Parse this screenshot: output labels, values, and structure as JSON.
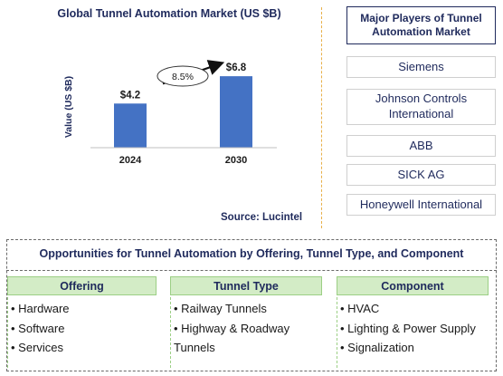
{
  "chart_data": {
    "type": "bar",
    "title": "Global Tunnel Automation Market (US $B)",
    "ylabel": "Value (US $B)",
    "xlabel": "",
    "categories": [
      "2024",
      "2030"
    ],
    "values": [
      4.2,
      6.8
    ],
    "value_labels": [
      "$4.2",
      "$6.8"
    ],
    "growth_label": "8.5%",
    "bar_color": "#4472c4",
    "source": "Source: Lucintel"
  },
  "players": {
    "title": "Major Players of Tunnel Automation Market",
    "items": [
      "Siemens",
      "Johnson Controls International",
      "ABB",
      "SICK AG",
      "Honeywell International"
    ]
  },
  "opportunities": {
    "title": "Opportunities for Tunnel Automation by Offering, Tunnel Type, and Component",
    "categories": [
      {
        "name": "Offering",
        "items": [
          "Hardware",
          "Software",
          "Services"
        ]
      },
      {
        "name": "Tunnel Type",
        "items": [
          "Railway Tunnels",
          "Highway & Roadway Tunnels"
        ]
      },
      {
        "name": "Component",
        "items": [
          "HVAC",
          "Lighting & Power Supply",
          "Signalization"
        ]
      }
    ]
  }
}
